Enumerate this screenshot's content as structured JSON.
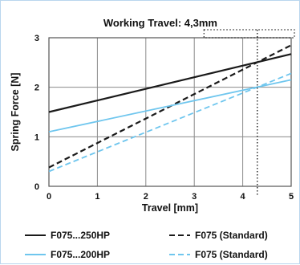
{
  "chart_data": {
    "type": "line",
    "title": "",
    "xlabel": "Travel [mm]",
    "ylabel": "Spring Force [N]",
    "xlim": [
      0,
      5
    ],
    "ylim": [
      0,
      3
    ],
    "x_ticks": [
      "0",
      "1",
      "2",
      "3",
      "4",
      "5"
    ],
    "y_ticks": [
      "0",
      "1",
      "2",
      "3"
    ],
    "grid": true,
    "legend_position": "bottom",
    "annotation": {
      "text": "Working Travel: 4,3mm",
      "x": 4.3
    },
    "series": [
      {
        "name": "F075...250HP",
        "color": "#1a1a1a",
        "dash": "solid",
        "x": [
          0,
          5
        ],
        "y": [
          1.5,
          2.67
        ]
      },
      {
        "name": "F075 (Standard)",
        "color": "#1a1a1a",
        "dash": "dashed",
        "x": [
          0,
          5
        ],
        "y": [
          0.38,
          2.85
        ]
      },
      {
        "name": "F075...200HP",
        "color": "#6fc6ee",
        "dash": "solid",
        "x": [
          0,
          5
        ],
        "y": [
          1.1,
          2.15
        ]
      },
      {
        "name": "F075 (Standard)",
        "color": "#6fc6ee",
        "dash": "dashed",
        "x": [
          0,
          5
        ],
        "y": [
          0.3,
          2.28
        ]
      }
    ]
  }
}
